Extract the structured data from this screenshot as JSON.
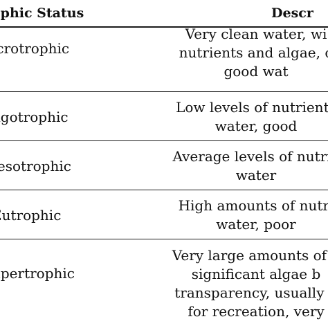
{
  "table": {
    "headers": {
      "status": "ophic Status",
      "description": "Descr"
    },
    "rows": [
      {
        "status": "icrotrophic",
        "description_lines": [
          "Very clean water, wi",
          "nutrients and algae, o",
          "good wat"
        ]
      },
      {
        "status": "ligotrophic",
        "description_lines": [
          "Low levels of nutrients",
          "water, good"
        ]
      },
      {
        "status": "Iesotrophic",
        "description_lines": [
          "Average levels of nutrie",
          "water"
        ]
      },
      {
        "status": "Eutrophic",
        "description_lines": [
          "High amounts of nutri",
          "water, poor"
        ]
      },
      {
        "status": "upertrophic",
        "description_lines": [
          "Very large amounts of p",
          "significant algae b",
          "transparency, usually n",
          "for recreation, very"
        ]
      }
    ]
  }
}
